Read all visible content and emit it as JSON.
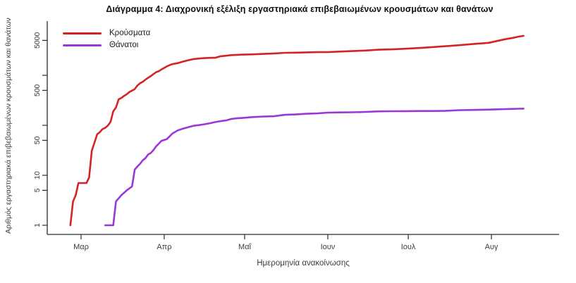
{
  "title": "Διάγραμμα 4: Διαχρονική εξέλιξη εργαστηριακά επιβεβαιωμένων κρουσμάτων και θανάτων",
  "chart_data": {
    "type": "line",
    "title": "Διάγραμμα 4: Διαχρονική εξέλιξη εργαστηριακά επιβεβαιωμένων κρουσμάτων και θανάτων",
    "xlabel": "Ημερομηνία ανακοίνωσης",
    "ylabel": "Αριθμός εργαστηριακά επιβεβαιωμένων κρουσμάτων και θανάτων",
    "y_scale": "log",
    "ylim": [
      1,
      6800
    ],
    "grid": false,
    "legend_position": "top-left",
    "axis_color": "#2b2b2b",
    "text_color": "#3d3d3d",
    "x_ticks": [
      {
        "date": "2020-03-01",
        "label": "Μαρ"
      },
      {
        "date": "2020-04-01",
        "label": "Απρ"
      },
      {
        "date": "2020-05-01",
        "label": "Μαΐ"
      },
      {
        "date": "2020-06-01",
        "label": "Ιουν"
      },
      {
        "date": "2020-07-01",
        "label": "Ιουλ"
      },
      {
        "date": "2020-08-01",
        "label": "Αυγ"
      }
    ],
    "y_ticks": [
      {
        "value": 1,
        "label": "1"
      },
      {
        "value": 5,
        "label": "5"
      },
      {
        "value": 10,
        "label": "10"
      },
      {
        "value": 50,
        "label": "50"
      },
      {
        "value": 100,
        "label": ""
      },
      {
        "value": 500,
        "label": "500"
      },
      {
        "value": 1000,
        "label": ""
      },
      {
        "value": 5000,
        "label": "5000"
      }
    ],
    "series": [
      {
        "name": "Κρούσματα",
        "color": "#d42322",
        "points": [
          [
            "2020-02-26",
            1
          ],
          [
            "2020-02-27",
            3
          ],
          [
            "2020-02-28",
            4
          ],
          [
            "2020-02-29",
            7
          ],
          [
            "2020-03-03",
            7
          ],
          [
            "2020-03-04",
            9
          ],
          [
            "2020-03-05",
            31
          ],
          [
            "2020-03-06",
            45
          ],
          [
            "2020-03-07",
            66
          ],
          [
            "2020-03-08",
            73
          ],
          [
            "2020-03-09",
            84
          ],
          [
            "2020-03-10",
            89
          ],
          [
            "2020-03-11",
            99
          ],
          [
            "2020-03-12",
            117
          ],
          [
            "2020-03-13",
            190
          ],
          [
            "2020-03-14",
            228
          ],
          [
            "2020-03-15",
            331
          ],
          [
            "2020-03-16",
            352
          ],
          [
            "2020-03-17",
            387
          ],
          [
            "2020-03-18",
            418
          ],
          [
            "2020-03-19",
            464
          ],
          [
            "2020-03-20",
            495
          ],
          [
            "2020-03-21",
            530
          ],
          [
            "2020-03-22",
            624
          ],
          [
            "2020-03-23",
            695
          ],
          [
            "2020-03-24",
            743
          ],
          [
            "2020-03-25",
            821
          ],
          [
            "2020-03-26",
            892
          ],
          [
            "2020-03-27",
            966
          ],
          [
            "2020-03-28",
            1061
          ],
          [
            "2020-03-29",
            1156
          ],
          [
            "2020-03-30",
            1212
          ],
          [
            "2020-03-31",
            1314
          ],
          [
            "2020-04-02",
            1514
          ],
          [
            "2020-04-04",
            1673
          ],
          [
            "2020-04-06",
            1755
          ],
          [
            "2020-04-08",
            1884
          ],
          [
            "2020-04-10",
            2011
          ],
          [
            "2020-04-12",
            2114
          ],
          [
            "2020-04-14",
            2170
          ],
          [
            "2020-04-16",
            2207
          ],
          [
            "2020-04-18",
            2235
          ],
          [
            "2020-04-20",
            2245
          ],
          [
            "2020-04-22",
            2408
          ],
          [
            "2020-04-24",
            2463
          ],
          [
            "2020-04-26",
            2534
          ],
          [
            "2020-04-28",
            2566
          ],
          [
            "2020-04-30",
            2591
          ],
          [
            "2020-05-04",
            2632
          ],
          [
            "2020-05-08",
            2678
          ],
          [
            "2020-05-12",
            2744
          ],
          [
            "2020-05-16",
            2819
          ],
          [
            "2020-05-20",
            2840
          ],
          [
            "2020-05-24",
            2876
          ],
          [
            "2020-05-28",
            2906
          ],
          [
            "2020-06-01",
            2917
          ],
          [
            "2020-06-05",
            2980
          ],
          [
            "2020-06-10",
            3049
          ],
          [
            "2020-06-15",
            3134
          ],
          [
            "2020-06-20",
            3256
          ],
          [
            "2020-06-25",
            3310
          ],
          [
            "2020-06-30",
            3409
          ],
          [
            "2020-07-05",
            3519
          ],
          [
            "2020-07-10",
            3672
          ],
          [
            "2020-07-15",
            3826
          ],
          [
            "2020-07-20",
            4007
          ],
          [
            "2020-07-25",
            4227
          ],
          [
            "2020-07-31",
            4477
          ],
          [
            "2020-08-03",
            4855
          ],
          [
            "2020-08-06",
            5270
          ],
          [
            "2020-08-09",
            5623
          ],
          [
            "2020-08-11",
            5942
          ],
          [
            "2020-08-13",
            6177
          ]
        ]
      },
      {
        "name": "Θάνατοι",
        "color": "#9a37d8",
        "points": [
          [
            "2020-03-10",
            1
          ],
          [
            "2020-03-13",
            1
          ],
          [
            "2020-03-14",
            3
          ],
          [
            "2020-03-16",
            4
          ],
          [
            "2020-03-18",
            5
          ],
          [
            "2020-03-20",
            6
          ],
          [
            "2020-03-21",
            13
          ],
          [
            "2020-03-22",
            15
          ],
          [
            "2020-03-23",
            17
          ],
          [
            "2020-03-24",
            20
          ],
          [
            "2020-03-25",
            22
          ],
          [
            "2020-03-26",
            26
          ],
          [
            "2020-03-27",
            28
          ],
          [
            "2020-03-28",
            32
          ],
          [
            "2020-03-29",
            38
          ],
          [
            "2020-03-30",
            43
          ],
          [
            "2020-03-31",
            49
          ],
          [
            "2020-04-02",
            53
          ],
          [
            "2020-04-04",
            68
          ],
          [
            "2020-04-06",
            79
          ],
          [
            "2020-04-08",
            86
          ],
          [
            "2020-04-10",
            92
          ],
          [
            "2020-04-12",
            98
          ],
          [
            "2020-04-14",
            101
          ],
          [
            "2020-04-16",
            105
          ],
          [
            "2020-04-18",
            110
          ],
          [
            "2020-04-20",
            116
          ],
          [
            "2020-04-22",
            121
          ],
          [
            "2020-04-24",
            125
          ],
          [
            "2020-04-26",
            134
          ],
          [
            "2020-04-28",
            138
          ],
          [
            "2020-04-30",
            140
          ],
          [
            "2020-05-04",
            146
          ],
          [
            "2020-05-08",
            150
          ],
          [
            "2020-05-12",
            152
          ],
          [
            "2020-05-16",
            162
          ],
          [
            "2020-05-20",
            165
          ],
          [
            "2020-05-24",
            170
          ],
          [
            "2020-05-28",
            173
          ],
          [
            "2020-06-01",
            179
          ],
          [
            "2020-06-05",
            181
          ],
          [
            "2020-06-10",
            182
          ],
          [
            "2020-06-15",
            185
          ],
          [
            "2020-06-20",
            190
          ],
          [
            "2020-06-25",
            191
          ],
          [
            "2020-06-30",
            192
          ],
          [
            "2020-07-05",
            193
          ],
          [
            "2020-07-10",
            193
          ],
          [
            "2020-07-15",
            195
          ],
          [
            "2020-07-20",
            201
          ],
          [
            "2020-07-25",
            203
          ],
          [
            "2020-07-31",
            206
          ],
          [
            "2020-08-03",
            209
          ],
          [
            "2020-08-06",
            211
          ],
          [
            "2020-08-09",
            213
          ],
          [
            "2020-08-11",
            214
          ],
          [
            "2020-08-13",
            216
          ]
        ]
      }
    ]
  }
}
